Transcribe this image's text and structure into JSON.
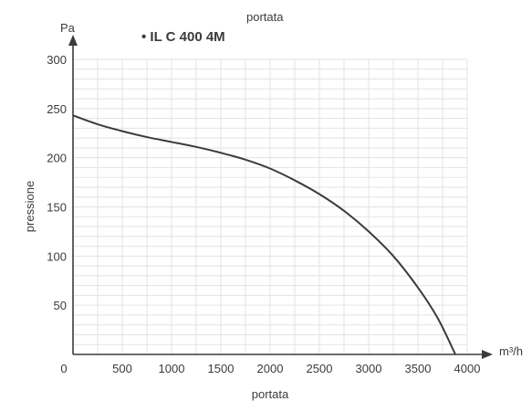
{
  "chart_data": {
    "type": "line",
    "title": "• IL C 400 4M",
    "subtitle": "portata",
    "xlabel": "portata",
    "x_unit": "m³/h",
    "ylabel": "pressione",
    "y_unit": "Pa",
    "xlim": [
      0,
      4000
    ],
    "ylim": [
      0,
      300
    ],
    "x_ticks": [
      0,
      500,
      1000,
      1500,
      2000,
      2500,
      3000,
      3500,
      4000
    ],
    "y_ticks": [
      50,
      100,
      150,
      200,
      250,
      300
    ],
    "grid": true,
    "colors": {
      "curve": "#3b3b3b",
      "grid": "#e3e3e3",
      "axis": "#3b3b3b"
    },
    "series": [
      {
        "x": [
          0,
          250,
          500,
          750,
          1000,
          1250,
          1500,
          1750,
          2000,
          2250,
          2500,
          2750,
          3000,
          3250,
          3500,
          3700,
          3880
        ],
        "y": [
          243,
          234,
          227,
          221,
          216,
          211,
          205,
          198,
          189,
          177,
          163,
          146,
          125,
          100,
          68,
          37,
          0
        ]
      }
    ]
  }
}
